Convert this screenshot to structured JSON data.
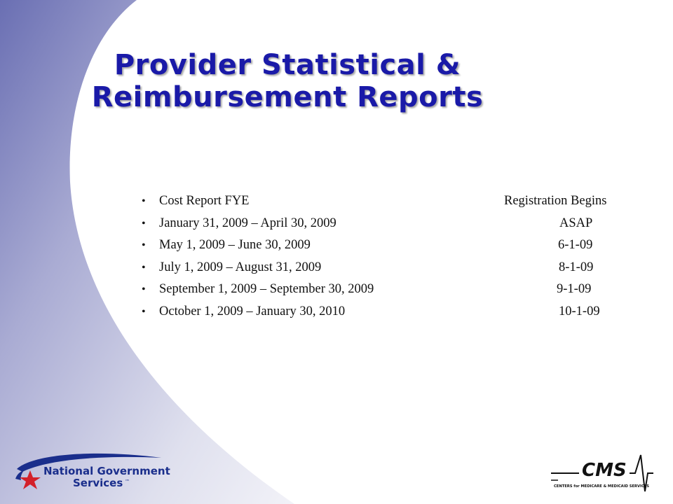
{
  "slide": {
    "title_lines": [
      "Provider Statistical &",
      "Reimbursement Reports"
    ]
  },
  "header_row": {
    "period": "Cost Report FYE",
    "begins": "Registration Begins"
  },
  "rows": [
    {
      "period": "January 31, 2009 – April 30, 2009",
      "begins": "ASAP"
    },
    {
      "period": "May 1, 2009 – June 30, 2009",
      "begins": "6-1-09"
    },
    {
      "period": "July 1, 2009 – August 31, 2009",
      "begins": "8-1-09"
    },
    {
      "period": "September 1, 2009 – September 30, 2009",
      "begins": "9-1-09"
    },
    {
      "period": "October 1, 2009 – January 30, 2010",
      "begins": "10-1-09"
    }
  ],
  "bullet_glyph": "•",
  "logos": {
    "ngs": {
      "line1": "National Government",
      "line2": "Services",
      "mark": "™"
    },
    "cms": {
      "wordmark": "CMS",
      "tagline": "CENTERS for MEDICARE & MEDICAID SERVICES"
    }
  },
  "colors": {
    "title": "#1a1aa8",
    "swoosh_dark": "#6a6fb3",
    "swoosh_light": "#e9eaf4",
    "star": "#d3202a"
  }
}
